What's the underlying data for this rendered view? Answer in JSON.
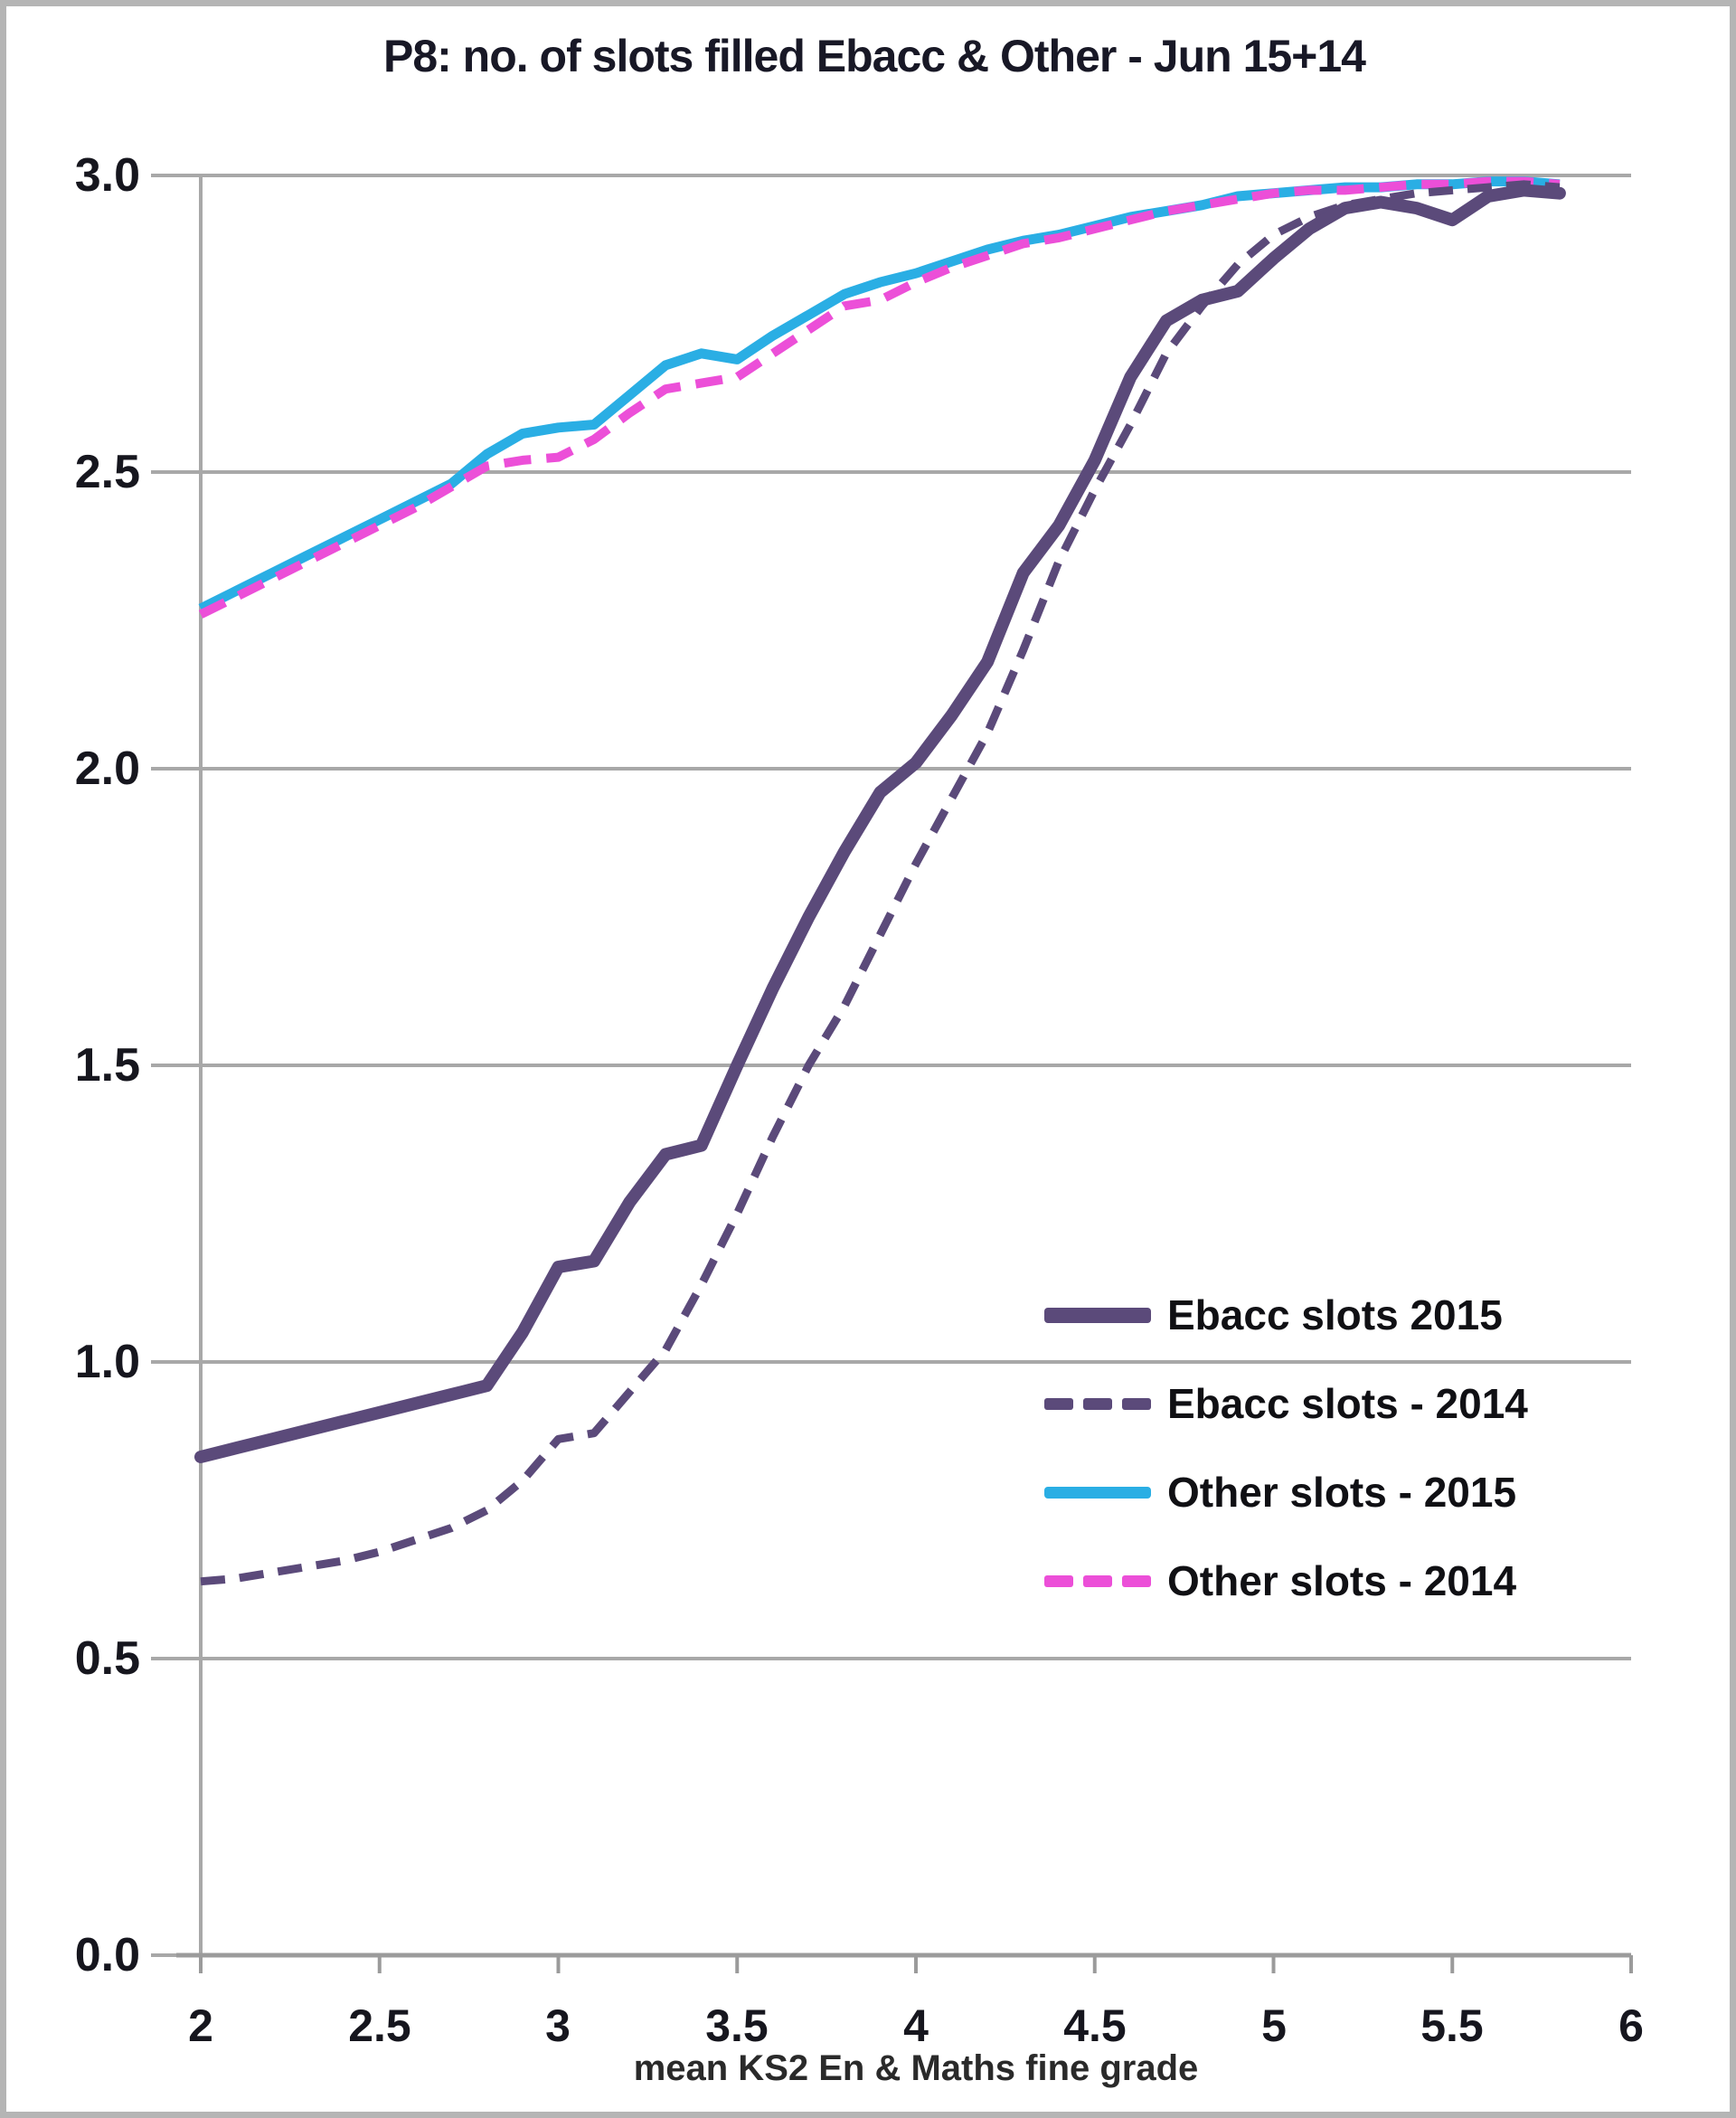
{
  "title": "P8: no. of slots filled Ebacc & Other - Jun 15+14",
  "axes": {
    "x_title": "mean KS2 En & Maths fine grade",
    "x_tick_labels": [
      "2",
      "2.5",
      "3",
      "3.5",
      "4",
      "4.5",
      "5",
      "5.5",
      "6"
    ],
    "y_tick_labels": [
      "3.0",
      "2.5",
      "2.0",
      "1.5",
      "1.0",
      "0.5",
      "0.0"
    ]
  },
  "legend": {
    "items": [
      {
        "label": "Ebacc slots 2015",
        "color": "#5b4a7a",
        "style": "solid-thick"
      },
      {
        "label": "Ebacc slots - 2014",
        "color": "#5b4a7a",
        "style": "dashed"
      },
      {
        "label": "Other slots - 2015",
        "color": "#2aaee4",
        "style": "solid"
      },
      {
        "label": "Other slots - 2014",
        "color": "#ec4fd8",
        "style": "dashed"
      }
    ]
  },
  "colors": {
    "gridline": "#a8a8a8",
    "axis": "#9b9b9b",
    "frame": "#b5b5b5",
    "text": "#16161e"
  },
  "chart_data": {
    "type": "line",
    "title": "P8: no. of slots filled Ebacc & Other - Jun 15+14",
    "xlabel": "mean KS2 En & Maths fine grade",
    "ylabel": "",
    "xlim": [
      2,
      6
    ],
    "ylim": [
      0.0,
      3.0
    ],
    "x_ticks": [
      2,
      2.5,
      3,
      3.5,
      4,
      4.5,
      5,
      5.5,
      6
    ],
    "y_ticks": [
      0.0,
      0.5,
      1.0,
      1.5,
      2.0,
      2.5,
      3.0
    ],
    "grid": "horizontal",
    "legend_position": "inside-right-middle",
    "x": [
      2.0,
      2.1,
      2.2,
      2.3,
      2.4,
      2.5,
      2.6,
      2.7,
      2.8,
      2.9,
      3.0,
      3.1,
      3.2,
      3.3,
      3.4,
      3.5,
      3.6,
      3.7,
      3.8,
      3.9,
      4.0,
      4.1,
      4.2,
      4.3,
      4.4,
      4.5,
      4.6,
      4.7,
      4.8,
      4.9,
      5.0,
      5.1,
      5.2,
      5.3,
      5.4,
      5.5,
      5.6,
      5.7,
      5.8
    ],
    "series": [
      {
        "name": "Ebacc slots 2015",
        "color": "#5b4a7a",
        "style": "solid-thick",
        "values": [
          0.84,
          0.855,
          0.87,
          0.885,
          0.9,
          0.915,
          0.93,
          0.945,
          0.96,
          1.05,
          1.16,
          1.17,
          1.27,
          1.35,
          1.365,
          1.5,
          1.63,
          1.75,
          1.86,
          1.96,
          2.01,
          2.09,
          2.18,
          2.33,
          2.41,
          2.52,
          2.66,
          2.755,
          2.79,
          2.805,
          2.86,
          2.91,
          2.945,
          2.955,
          2.945,
          2.925,
          2.965,
          2.975,
          2.97
        ]
      },
      {
        "name": "Ebacc slots - 2014",
        "color": "#5b4a7a",
        "style": "dashed",
        "values": [
          0.63,
          0.635,
          0.645,
          0.655,
          0.665,
          0.68,
          0.7,
          0.72,
          0.75,
          0.8,
          0.87,
          0.88,
          0.95,
          1.02,
          1.13,
          1.25,
          1.38,
          1.5,
          1.6,
          1.72,
          1.84,
          1.95,
          2.06,
          2.2,
          2.35,
          2.47,
          2.58,
          2.7,
          2.78,
          2.85,
          2.9,
          2.93,
          2.95,
          2.96,
          2.97,
          2.975,
          2.98,
          2.985,
          2.98
        ]
      },
      {
        "name": "Other slots - 2015",
        "color": "#2aaee4",
        "style": "solid",
        "values": [
          2.27,
          2.3,
          2.33,
          2.36,
          2.39,
          2.42,
          2.45,
          2.48,
          2.53,
          2.565,
          2.575,
          2.58,
          2.63,
          2.68,
          2.7,
          2.69,
          2.73,
          2.765,
          2.8,
          2.82,
          2.835,
          2.855,
          2.875,
          2.89,
          2.9,
          2.915,
          2.93,
          2.94,
          2.95,
          2.965,
          2.97,
          2.975,
          2.98,
          2.98,
          2.985,
          2.985,
          2.99,
          2.99,
          2.985
        ]
      },
      {
        "name": "Other slots - 2014",
        "color": "#ec4fd8",
        "style": "dashed",
        "values": [
          2.26,
          2.29,
          2.32,
          2.35,
          2.38,
          2.41,
          2.44,
          2.475,
          2.51,
          2.52,
          2.525,
          2.555,
          2.6,
          2.64,
          2.65,
          2.66,
          2.7,
          2.74,
          2.78,
          2.79,
          2.82,
          2.845,
          2.865,
          2.885,
          2.895,
          2.91,
          2.925,
          2.94,
          2.95,
          2.96,
          2.97,
          2.975,
          2.975,
          2.98,
          2.985,
          2.985,
          2.99,
          2.99,
          2.985
        ]
      }
    ]
  }
}
